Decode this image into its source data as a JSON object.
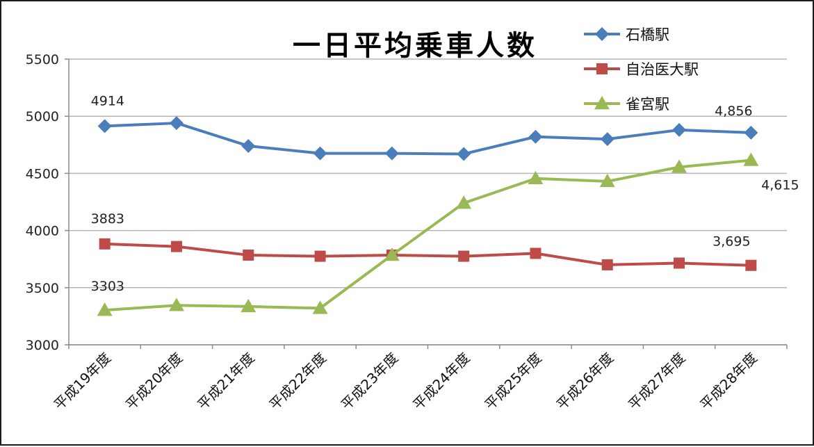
{
  "chart_data": {
    "type": "line",
    "title": "一日平均乗車人数",
    "xlabel": "",
    "ylabel": "",
    "ylim": [
      3000,
      5500
    ],
    "yticks": [
      "3000",
      "3500",
      "4000",
      "4500",
      "5000",
      "5500"
    ],
    "grid": true,
    "legend_position": "top-right",
    "categories": [
      "平成19年度",
      "平成20年度",
      "平成21年度",
      "平成22年度",
      "平成23年度",
      "平成24年度",
      "平成25年度",
      "平成26年度",
      "平成27年度",
      "平成28年度"
    ],
    "series": [
      {
        "name": "石橋駅",
        "color": "#4a7ebb",
        "marker": "diamond",
        "values": [
          4914,
          4940,
          4740,
          4675,
          4675,
          4670,
          4820,
          4800,
          4880,
          4856
        ],
        "labels": [
          {
            "index": 0,
            "text": "4914"
          },
          {
            "index": 9,
            "text": "4,856"
          }
        ]
      },
      {
        "name": "自治医大駅",
        "color": "#be4b48",
        "marker": "square",
        "values": [
          3883,
          3860,
          3785,
          3775,
          3785,
          3775,
          3800,
          3700,
          3715,
          3695
        ],
        "labels": [
          {
            "index": 0,
            "text": "3883"
          },
          {
            "index": 9,
            "text": "3,695"
          }
        ]
      },
      {
        "name": "雀宮駅",
        "color": "#98b954",
        "marker": "triangle",
        "values": [
          3303,
          3345,
          3335,
          3320,
          3785,
          4240,
          4455,
          4430,
          4555,
          4615
        ],
        "labels": [
          {
            "index": 0,
            "text": "3303"
          },
          {
            "index": 9,
            "text": "4,615"
          }
        ]
      }
    ]
  }
}
